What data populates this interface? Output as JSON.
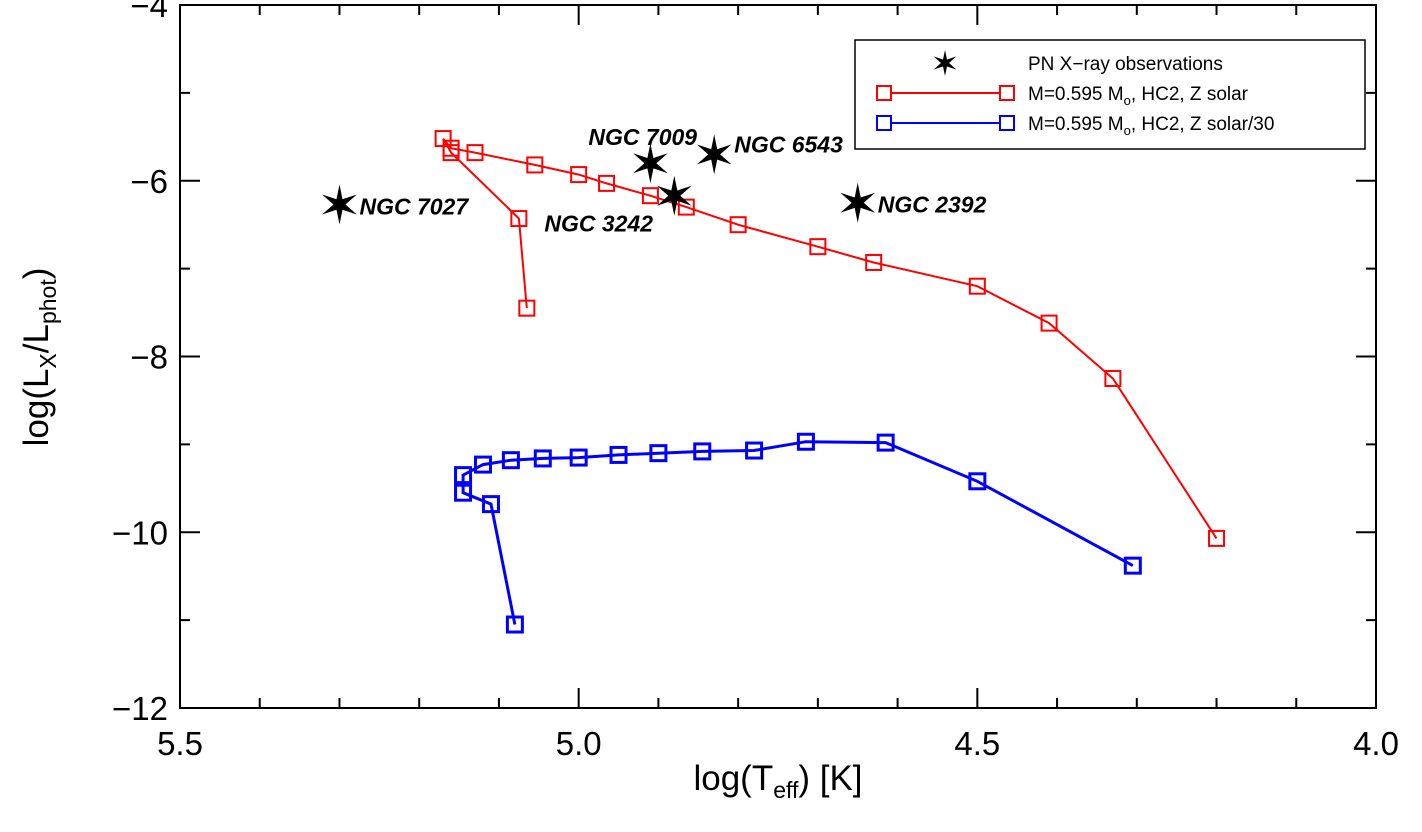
{
  "chart_data": {
    "type": "scatter",
    "xlabel": {
      "main": "log(T",
      "sub": "eff",
      "tail": ") [K]"
    },
    "ylabel": {
      "main": "log(L",
      "sub1": "X",
      "mid": "/L",
      "sub2": "phot",
      "tail": ")"
    },
    "xlim": [
      5.5,
      4.0
    ],
    "ylim": [
      -12.0,
      -4.0
    ],
    "x_ticks": [
      {
        "value": 5.5,
        "label": "5.5"
      },
      {
        "value": 5.0,
        "label": "5.0"
      },
      {
        "value": 4.5,
        "label": "4.5"
      },
      {
        "value": 4.0,
        "label": "4.0"
      }
    ],
    "y_ticks": [
      {
        "value": -4,
        "label": "−4"
      },
      {
        "value": -6,
        "label": "−6"
      },
      {
        "value": -8,
        "label": "−8"
      },
      {
        "value": -10,
        "label": "−10"
      },
      {
        "value": -12,
        "label": "−12"
      }
    ],
    "x_minor_step": 0.1,
    "y_minor_step": 1,
    "grid": false,
    "legend_position": "top-right",
    "series": [
      {
        "name": "M=0.595 M_o, HC2, Z solar",
        "legend": {
          "pre": "M=0.595 M",
          "sub": "o",
          "post": ", HC2, Z solar"
        },
        "color": "#ff0000",
        "marker": "square",
        "x": [
          5.065,
          5.075,
          5.16,
          5.17,
          5.16,
          5.13,
          5.055,
          5.0,
          4.965,
          4.91,
          4.865,
          4.8,
          4.7,
          4.63,
          4.5,
          4.41,
          4.33,
          4.2
        ],
        "y": [
          -7.45,
          -6.43,
          -5.68,
          -5.52,
          -5.63,
          -5.68,
          -5.82,
          -5.93,
          -6.03,
          -6.17,
          -6.3,
          -6.5,
          -6.75,
          -6.93,
          -7.2,
          -7.62,
          -8.25,
          -10.07
        ]
      },
      {
        "name": "M=0.595 M_o, HC2, Z solar/30",
        "legend": {
          "pre": "M=0.595 M",
          "sub": "o",
          "post": ", HC2, Z solar/30"
        },
        "color": "#0000ff",
        "marker": "square",
        "x": [
          5.08,
          5.11,
          5.145,
          5.145,
          5.12,
          5.085,
          5.045,
          5.0,
          4.95,
          4.9,
          4.845,
          4.78,
          4.715,
          4.615,
          4.5,
          4.305
        ],
        "y": [
          -11.05,
          -9.68,
          -9.55,
          -9.35,
          -9.23,
          -9.18,
          -9.16,
          -9.15,
          -9.12,
          -9.1,
          -9.08,
          -9.07,
          -8.97,
          -8.98,
          -9.42,
          -10.38
        ]
      },
      {
        "name": "PN X-ray observations",
        "legend": {
          "pre": "PN X−ray observations",
          "sub": "",
          "post": ""
        },
        "color": "#000000",
        "marker": "star",
        "points": [
          {
            "label": "NGC 7027",
            "x": 5.3,
            "y": -6.27
          },
          {
            "label": "NGC 7009",
            "x": 4.91,
            "y": -5.8
          },
          {
            "label": "NGC 3242",
            "x": 4.88,
            "y": -6.17
          },
          {
            "label": "NGC 6543",
            "x": 4.83,
            "y": -5.7
          },
          {
            "label": "NGC 2392",
            "x": 4.65,
            "y": -6.25
          }
        ]
      }
    ]
  }
}
